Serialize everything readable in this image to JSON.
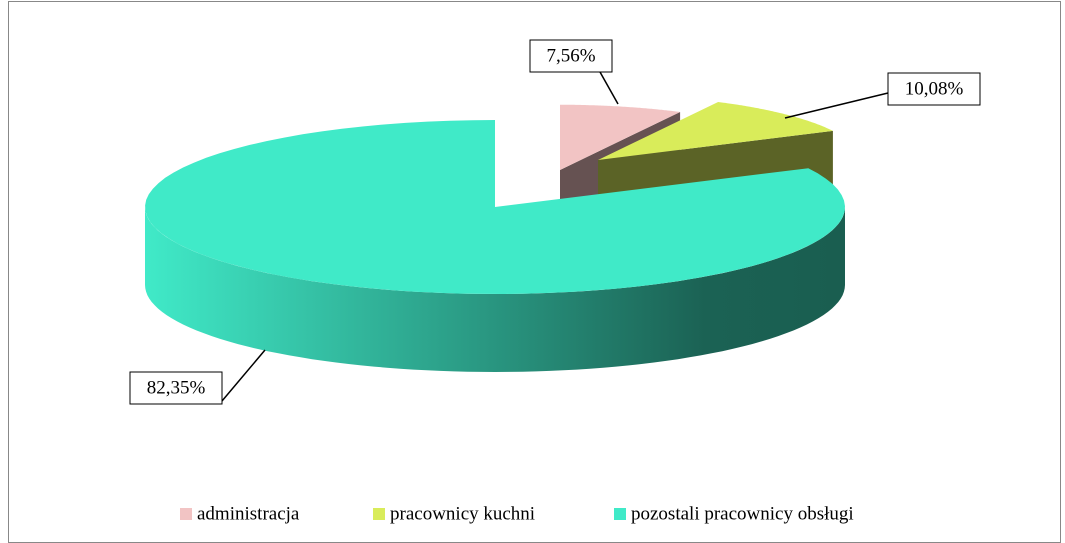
{
  "chart_data": {
    "type": "pie3d",
    "categories": [
      "administracja",
      "pracownicy kuchni",
      "pozostali pracownicy obsługi"
    ],
    "values": [
      7.56,
      10.08,
      82.35
    ],
    "value_labels": [
      "7,56%",
      "10,08%",
      "82,35%"
    ],
    "colors": [
      "#f2c4c4",
      "#d9ec5a",
      "#40eac8"
    ],
    "legend": "bottom"
  }
}
